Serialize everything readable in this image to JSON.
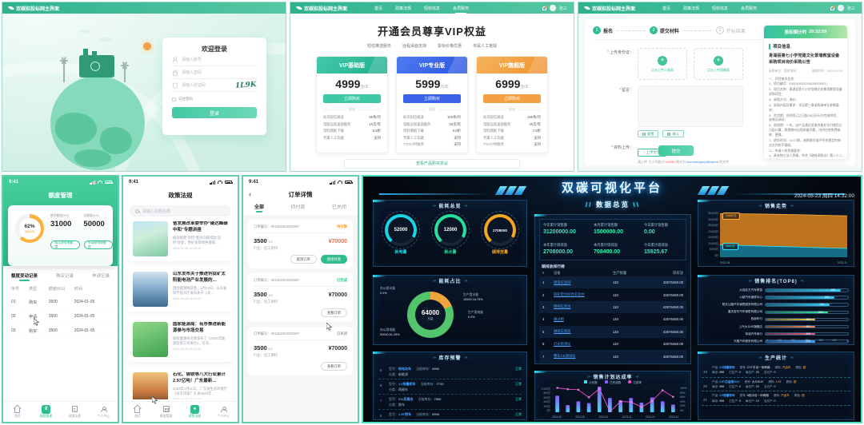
{
  "login": {
    "brand": "双碳招投标网主界面",
    "title": "欢迎登录",
    "account_placeholder": "请输入账号",
    "password_placeholder": "请输入密码",
    "captcha_placeholder": "请输入验证码",
    "captcha_text": "1L9K",
    "remember": "记住密码",
    "submit": "登录"
  },
  "vip": {
    "brand": "双碳招投标网主界面",
    "nav": [
      "首页",
      "政策法规",
      "招标信息",
      "会员服务"
    ],
    "username": "张三",
    "title": "开通会员尊享VIP权益",
    "features": [
      "短信推送服务",
      "远程桌面支持",
      "投标价格优惠",
      "专属人工答疑"
    ],
    "divider": "权益",
    "buy": "立即购买",
    "agreement": "查看产品购买协议",
    "plans": [
      {
        "name": "VIP基础版",
        "price": "4999",
        "unit": "元/年",
        "hd1": "#43cbaa",
        "hd2": "#1fae8e",
        "btn": "#3fc8a6",
        "benefits": [
          {
            "k": "标讯短信推送",
            "v": "50条/月"
          },
          {
            "k": "电脑远程桌面服务",
            "v": "10次/年"
          },
          {
            "k": "资料模板下载",
            "v": "5.5折"
          },
          {
            "k": "专属人工答疑",
            "v": "支持"
          }
        ]
      },
      {
        "name": "VIP专业版",
        "price": "5999",
        "unit": "元/年",
        "hd1": "#4f7bf0",
        "hd2": "#2b55e0",
        "btn": "#3a63e8",
        "benefits": [
          {
            "k": "标讯短信推送",
            "v": "100条/月"
          },
          {
            "k": "电脑远程桌面服务",
            "v": "20次/年"
          },
          {
            "k": "资料模板下载",
            "v": "6.5折"
          },
          {
            "k": "专属人工答疑",
            "v": "支持"
          },
          {
            "k": "7*24小时服务",
            "v": "支持"
          }
        ]
      },
      {
        "name": "VIP旗舰版",
        "price": "6999",
        "unit": "元/年",
        "hd1": "#f6b35c",
        "hd2": "#ef9330",
        "btn": "#f3a043",
        "benefits": [
          {
            "k": "标讯短信推送",
            "v": "150条/月"
          },
          {
            "k": "电脑远程桌面服务",
            "v": "30次/年"
          },
          {
            "k": "资料模板下载",
            "v": "7.5折"
          },
          {
            "k": "专属人工答疑",
            "v": "支持"
          },
          {
            "k": "7*24小时服务",
            "v": "支持"
          }
        ]
      }
    ]
  },
  "bid": {
    "brand": "双碳招投标网主界面",
    "nav": [
      "首页",
      "政策法规",
      "招标信息",
      "会员服务"
    ],
    "username": "张三",
    "steps": [
      {
        "n": "1",
        "label": "报名",
        "on": true
      },
      {
        "n": "2",
        "label": "提交材料",
        "on": true
      },
      {
        "n": "3",
        "label": "开标结果",
        "on": false
      }
    ],
    "form": {
      "id_label": "上传身份证：",
      "front": "点击上传人像面",
      "back": "点击上传国徽面",
      "msg_label": "留言：",
      "reset": "重置",
      "confirm": "确认",
      "file_label": "资料上传：",
      "upload": "↑ 上传文件",
      "hint_pre": "请上传 大小不超过 ",
      "hint_size": "500MB",
      "hint_mid": " 格式为 ",
      "hint_fmt": "doc/xlsx/ppt/pdf/zip/rar",
      "hint_post": " 的文件",
      "submit": "提交"
    },
    "notice": {
      "countdown_label": "投标倒计时",
      "countdown": "20:32:59",
      "section": "项目信息",
      "title": "青湖县第七小学党建文化景墙教室设备采购项目询价采购公告",
      "meta1": "采购单位：国家电网",
      "meta2": "采购时间：2024-03-05",
      "paragraphs": [
        "一、项目基本信息：",
        "1、项目编号：E42010012024025032001；",
        "2、项目名称：青湖县第七小学党建文化景墙教室设备采购项目；",
        "3、采购方式：询价；",
        "4、采购内容及需求：详见第三章采购清单及参数要求；",
        "5、交货期：合同签订之日起15日历天内完成供货、安装及调试；",
        "6、质保期：一年。自产品通过验收合格并交付使用之日起计算，质保期内出现质量问题，由供应商免费维修、更换。",
        "7、递交时间：14:17前，逾期递交或不符合规定的响应文件恕不接收。",
        "二、申请人的资格要求：",
        "1、具有独立法人资格，符合《政府采购法》第二十二条的规定；",
        "2、在中国境内注册，具有独立法人资格或具备相应经营范围（组织机构证）的厂家或经销商；具备相应的经营范围及相关技术能力；",
        "3、有效的营业执照经营证照、组织机构代码、税务登记证（即三证合一或五证合一营业执照）。"
      ]
    }
  },
  "quota": {
    "time": "9:41",
    "title": "额度管理",
    "gauge_pct": "62%",
    "gauge_label": "剩余比例",
    "remain_label": "剩余额度(KG)",
    "remain_value": "31000",
    "total_label": "总额度(KG)",
    "total_value": "50000",
    "buy_btn": "购买碳排放额度",
    "apply_btn": "申请碳排放额度",
    "tabs": [
      "额度变动记录",
      "购买记录",
      "申请记录"
    ],
    "table_headers": [
      "序号",
      "类型",
      "额度(KG)",
      "时间"
    ],
    "rows": [
      [
        "01",
        "购买",
        "3500",
        "2024-01-05"
      ],
      [
        "02",
        "申请",
        "3500",
        "2024-01-05"
      ],
      [
        "03",
        "购买",
        "3500",
        "2024-01-05"
      ]
    ],
    "nav": [
      "首页",
      "额度管理",
      "政策法规",
      "个人中心"
    ]
  },
  "policy": {
    "time": "9:41",
    "title": "政策法规",
    "search_placeholder": "请输入标题名称",
    "items": [
      {
        "title": "省发展改革委举办“碳达峰碳中和”专题讲座",
        "desc": "推动能耗“双控”逐步向碳排放“双控”转变，更好发挥绿色低碳…",
        "time": "2024-01-06 22:10:19"
      },
      {
        "title": "山东发布关于推进钙钛矿太阳能电池产业发展的…",
        "desc": "国际能源网获悉，1月24日，山东省科学技术厅发布关于《关…",
        "time": "2024-01-06 22:10:19"
      },
      {
        "title": "国家能源局：有序推进新能源参与市场交易",
        "desc": "国家能源局近期发布了《2024年能源监管工作要点》，在有…",
        "time": "2024-01-06 22:10:19"
      },
      {
        "title": "石化、钢铁等八大行业累计2.97亿吨！广东最新…",
        "desc": "2024年1月11日，广东省生态环境厅《关于印发广东省2023年…",
        "time": "2024-01-06 22:10:19"
      }
    ]
  },
  "orders": {
    "time": "9:41",
    "back": "‹",
    "title": "订单详情",
    "tabs": [
      "全部",
      "待付款",
      "已关闭"
    ],
    "order_no_label": "订单编号：",
    "industry": "行业：化工原料",
    "cards": [
      {
        "no": "001202304202987",
        "status": "待付款",
        "status_color": "#ff9f2e",
        "qty": "3500",
        "unit": "KG",
        "amount": "¥70000",
        "amount_color": "#ff6b3d",
        "buttons": [
          {
            "label": "取消订单",
            "fill": false
          },
          {
            "label": "继续付款",
            "fill": true
          }
        ]
      },
      {
        "no": "001202304202987",
        "status": "已完成",
        "status_color": "#27c27d",
        "qty": "3500",
        "unit": "KG",
        "amount": "¥70000",
        "amount_color": "#333333",
        "buttons": [
          {
            "label": "查看订单",
            "fill": false
          }
        ]
      },
      {
        "no": "001202304202987",
        "status": "已关闭",
        "status_color": "#9aa3ad",
        "qty": "3500",
        "unit": "KG",
        "amount": "¥70000",
        "amount_color": "#333333",
        "buttons": [
          {
            "label": "查看订单",
            "fill": false
          }
        ]
      }
    ]
  },
  "dash": {
    "title": "双碳可视化平台",
    "datetime": "2024-05-23 周四 14:32:00",
    "overview_heading": "数据总览",
    "deco_l": "›››",
    "deco_r": "‹‹‹",
    "slash_l": "//",
    "slash_r": "\\\\",
    "energy": {
      "title": "能耗总览",
      "gauges": [
        {
          "value": "52000",
          "label": "耗电量",
          "color": "#19d3e6"
        },
        {
          "value": "12000",
          "label": "耗水量",
          "color": "#27e0a0"
        },
        {
          "value": "2708000",
          "label": "碳排放量",
          "color": "#f5a623"
        }
      ]
    },
    "ratio": {
      "title": "能耗占比",
      "center_value": "64000",
      "center_unit": "总量",
      "slices": [
        {
          "label": "办公用水量",
          "value": "0",
          "pct": "0%",
          "pct_num": 0,
          "color": "#8ad0ff"
        },
        {
          "label": "生产用水量",
          "value": "12000",
          "pct": "18.75%",
          "pct_num": 18.75,
          "color": "#f0a43c"
        },
        {
          "label": "生产用电量",
          "value": "0",
          "pct": "0%",
          "pct_num": 0,
          "color": "#3ad1c2"
        },
        {
          "label": "办公用电量",
          "value": "52000",
          "pct": "81.25%",
          "pct_num": 81.25,
          "color": "#52c46b"
        }
      ]
    },
    "stock": {
      "title": "库存预警",
      "labels": {
        "model": "型号：",
        "category": "分类：",
        "stock": "当前库存："
      },
      "rows": [
        {
          "no": "5",
          "model": "纯电动车",
          "category": "新能源",
          "stock": "4990",
          "status": "正常"
        },
        {
          "no": "6",
          "model": "1.6排量轿车",
          "category": "两厢车",
          "stock": "7710",
          "status": "正常"
        },
        {
          "no": "7",
          "model": "911双离合",
          "category": "跑车",
          "stock": "7990",
          "status": "正常"
        },
        {
          "no": "8",
          "model": "1.5T轿车",
          "category": "三厢车",
          "stock": "9990",
          "status": "正常"
        }
      ]
    },
    "stats": [
      {
        "label": "今年累计销售额",
        "value": "31200000.00"
      },
      {
        "label": "本月累计销售额",
        "value": "1500000.00"
      },
      {
        "label": "今日累计销售额",
        "value": "0.00"
      },
      {
        "label": "本年累计碳排放",
        "value": "2708000.00"
      },
      {
        "label": "本月累计碳排放",
        "value": "708400.00"
      },
      {
        "label": "今日累计碳排放",
        "value": "15925.67"
      }
    ],
    "rank_title": "碳排放排行榜",
    "table": {
      "headers": [
        "#",
        "设备",
        "生产数量",
        "碳排放"
      ],
      "rows": [
        [
          "1",
          "喷漆实验间",
          "110",
          "42576450.00"
        ],
        [
          "2",
          "四轮定位综合实验台",
          "110",
          "42576450.00"
        ],
        [
          "3",
          "侧倾实验台",
          "110",
          "42576450.00"
        ],
        [
          "4",
          "通过桥",
          "110",
          "42576450.00"
        ],
        [
          "5",
          "淋雨实验房",
          "110",
          "42576450.00"
        ],
        [
          "6",
          "灯光检测仪",
          "110",
          "42576450.00"
        ],
        [
          "7",
          "整车CB测试仪",
          "110",
          "42576450.00"
        ]
      ]
    },
    "plan": {
      "title": "销售计划达成率",
      "legend": [
        "计划数",
        "已完成数",
        "达成率"
      ],
      "months": [
        "2023-06",
        "2023-07",
        "2023-08",
        "2023-09",
        "2023-10",
        "2023-11",
        "2023-12",
        "2024-01",
        "2024-02",
        "2024-03",
        "2024-04",
        "2024-05"
      ],
      "bars": [
        650,
        280,
        430,
        360,
        1000,
        560,
        470,
        560,
        380,
        580,
        430,
        300
      ],
      "rate": [
        95,
        90,
        88,
        58,
        92,
        2,
        42,
        40,
        20,
        44,
        86,
        60
      ],
      "bar_max": 1000,
      "y_left": [
        "1,000万",
        "800万",
        "600万",
        "400万",
        "200万",
        "0万"
      ],
      "y_right": [
        "100%",
        "80%",
        "60%",
        "40%",
        "20%",
        "0%"
      ],
      "x_labels": [
        "2023-06",
        "2023-08",
        "2023-10",
        "2023-12",
        "2024-02",
        "2024-04"
      ]
    },
    "trend": {
      "title": "销售走势",
      "y_ticks": [
        "35,000万",
        "30,000万",
        "25,000万",
        "20,000万",
        "15,000万",
        "10,000万",
        "5,000万",
        "0万"
      ],
      "x_ticks": [
        "2022-04",
        "2023-11"
      ],
      "y_max": 35000,
      "orange": [
        34880,
        34700,
        34500,
        34300,
        34100,
        33900,
        33600,
        33300,
        33000
      ],
      "cyan": [
        9840,
        9500,
        9150,
        8800,
        8450,
        8100,
        7700,
        7300,
        7000
      ],
      "labels": [
        {
          "text": "34880万",
          "color": "#ffb03a"
        },
        {
          "text": "9840万",
          "color": "#35e3ff"
        }
      ]
    },
    "top8": {
      "title": "销售排名(TOP8)",
      "max": 660,
      "unit": "次",
      "x_ticks": [
        "0",
        "120",
        "240",
        "360",
        "480",
        "600"
      ],
      "rows": [
        {
          "name": "大连北方汽车贸易",
          "value": 600,
          "color": "#36c9f0"
        },
        {
          "name": "小耕汽车维修中心",
          "value": 550,
          "color": "#36c9f0"
        },
        {
          "name": "阳光公路汽车销售服务有限公司",
          "value": 510,
          "color": "#36c9f0"
        },
        {
          "name": "重庆宜华汽车销售有限公司",
          "value": 500,
          "color": "#3be8a0"
        },
        {
          "name": "西部车行",
          "value": 400,
          "color": "#f5c542"
        },
        {
          "name": "上汽大众4S旗舰店",
          "value": 400,
          "color": "#f5894a"
        },
        {
          "name": "军诚汽车商行",
          "value": 400,
          "color": "#f0607a"
        },
        {
          "name": "天骏汽车服务有限公司",
          "value": 400,
          "color": "#4a9df0"
        }
      ]
    },
    "prod": {
      "title": "生产统计",
      "labels": {
        "product": "产品:",
        "model": "型号:",
        "fuel": "燃料:",
        "color": "颜色:",
        "stock": "库存:",
        "made": "已生产:",
        "daily": "每日产:",
        "month": "当月产:"
      },
      "rows": [
        {
          "no": "19",
          "product": "2.5排量轿车",
          "model": "CVT手自一体两厢",
          "fuel": "汽油车",
          "color": "银",
          "stock": "998",
          "made": "0",
          "daily": "20",
          "month": "0"
        },
        {
          "no": "20",
          "product": "2.0T白金版SUV",
          "model": "大众SUV",
          "fuel": "1.8T",
          "color": "银",
          "stock": "998",
          "made": "0",
          "daily": "20",
          "month": "0"
        },
        {
          "no": "21",
          "product": "2.5排量轿车",
          "model": "6档手自一体两厢",
          "fuel": "汽油车",
          "color": "银",
          "stock": "998",
          "made": "0",
          "daily": "10",
          "month": "0"
        }
      ]
    }
  }
}
